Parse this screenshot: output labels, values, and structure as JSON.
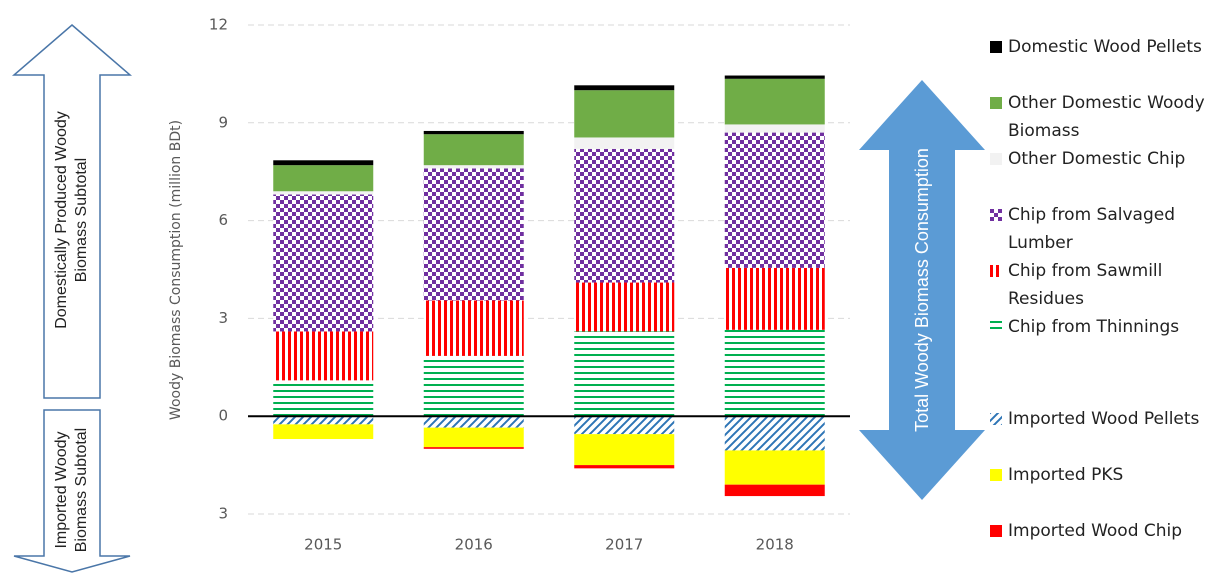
{
  "chart_data": {
    "type": "bar",
    "stacked": true,
    "y_label": "Woody Biomass Consumption (million BDt)",
    "categories": [
      "2015",
      "2016",
      "2017",
      "2018"
    ],
    "series": [
      {
        "name": "Domestic Wood Pellets",
        "color": "#000000",
        "pattern": "solid",
        "values": [
          0.15,
          0.1,
          0.15,
          0.1
        ]
      },
      {
        "name": "Other Domestic Woody Biomass",
        "color": "#70ad47",
        "pattern": "solid",
        "values": [
          0.8,
          0.95,
          1.45,
          1.4
        ]
      },
      {
        "name": "Other Domestic Chip",
        "color": "#f2f2f2",
        "pattern": "solid",
        "values": [
          0.1,
          0.1,
          0.35,
          0.25
        ]
      },
      {
        "name": "Chip from Salvaged Lumber",
        "color": "#7030a0",
        "pattern": "checker",
        "values": [
          4.2,
          4.05,
          4.1,
          4.15
        ]
      },
      {
        "name": "Chip from Sawmill Residues",
        "color": "#ff0000",
        "pattern": "vstripe",
        "values": [
          1.5,
          1.7,
          1.5,
          1.9
        ]
      },
      {
        "name": "Chip from Thinnings",
        "color": "#00b050",
        "pattern": "hstripe",
        "values": [
          1.1,
          1.85,
          2.6,
          2.65
        ]
      },
      {
        "name": "Imported Wood Pellets",
        "color": "#2e75b6",
        "pattern": "diag",
        "values": [
          -0.25,
          -0.35,
          -0.55,
          -1.05
        ]
      },
      {
        "name": "Imported PKS",
        "color": "#ffff00",
        "pattern": "solid",
        "values": [
          -0.45,
          -0.6,
          -0.95,
          -1.05
        ]
      },
      {
        "name": "Imported Wood Chip",
        "color": "#ff0000",
        "pattern": "solid",
        "values": [
          0,
          -0.05,
          -0.1,
          -0.35
        ]
      }
    ],
    "ylim": [
      -3,
      12
    ],
    "yticks": [
      {
        "value": -3,
        "label": "3"
      },
      0,
      3,
      6,
      9,
      12
    ],
    "grid": true,
    "annotations": [
      "Domestically Produced Woody Biomass Subtotal",
      "Imported Woody Biomass Subtotal",
      "Total Woody Biomass Consumption"
    ]
  }
}
